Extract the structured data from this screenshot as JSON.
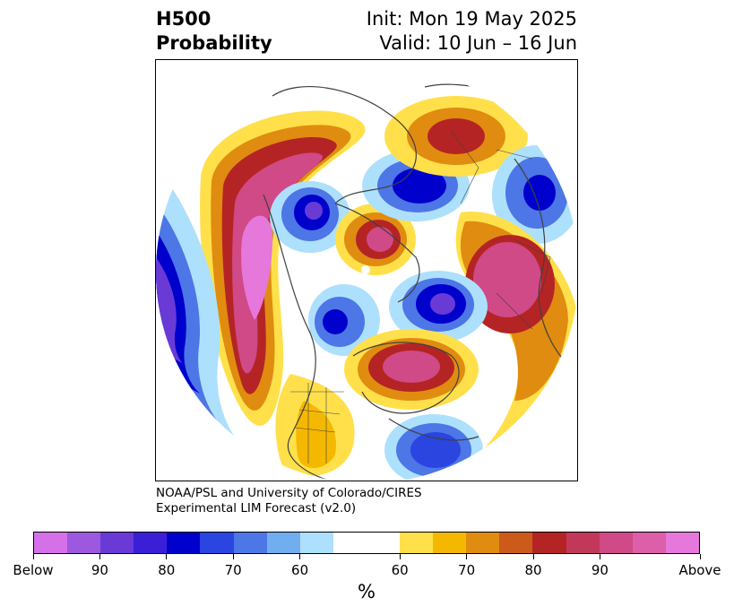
{
  "title": {
    "left_line1": "H500",
    "left_line2": "Probability",
    "right_line1": "Init: Mon 19 May 2025",
    "right_line2": "Valid: 10 Jun – 16 Jun"
  },
  "credit": {
    "line1": "NOAA/PSL and University of Colorado/CIRES",
    "line2": "Experimental LIM Forecast (v2.0)"
  },
  "colorbar": {
    "colors": [
      "#d670e8",
      "#9d58e0",
      "#6a3ad6",
      "#3a1fd6",
      "#0000cc",
      "#2a45e0",
      "#4d76e6",
      "#70aef0",
      "#ade0fc",
      "#ffffff",
      "#ffffff",
      "#ffe04a",
      "#f5b800",
      "#e08c10",
      "#cc5a1a",
      "#b52424",
      "#c2385a",
      "#cf4a86",
      "#dd5ea9",
      "#e678dc"
    ],
    "tick_labels": [
      "Below",
      "90",
      "80",
      "70",
      "60",
      "60",
      "70",
      "80",
      "90",
      "Above"
    ],
    "units": "%"
  },
  "map": {
    "projection": "north-polar-stereographic",
    "field": "500 hPa height probability",
    "coastlines": true,
    "borders": true
  }
}
